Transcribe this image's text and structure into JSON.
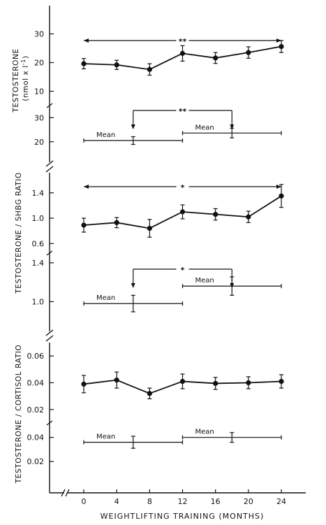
{
  "x_axis": {
    "label": "WEIGHTLIFTING TRAINING (MONTHS)",
    "ticks": [
      0,
      4,
      8,
      12,
      16,
      20,
      24
    ],
    "range": [
      -3.2,
      26.8
    ]
  },
  "y_labels": {
    "testosterone_main": "TESTOSTERONE",
    "testosterone_unit": "(nmol x l",
    "testosterone_unit_sup": "-1",
    "testosterone_unit_close": ")",
    "tshbg": "TESTOSTERONE / SHBG  RATIO",
    "tcort": "TESTOSTERONE / CORTISOL  RATIO"
  },
  "chart_data": [
    {
      "type": "line",
      "panel": "testosterone-time",
      "ylabel": "TESTOSTERONE (nmol x l-1)",
      "ylim": [
        5,
        35
      ],
      "yticks": [
        10,
        20,
        30
      ],
      "x": [
        0,
        4,
        8,
        12,
        16,
        20,
        24
      ],
      "y": [
        19.6,
        19.2,
        17.6,
        23.2,
        21.6,
        23.5,
        25.6
      ],
      "err": [
        1.8,
        1.6,
        2.0,
        2.7,
        1.9,
        2.0,
        2.1
      ],
      "significance": {
        "from": 0,
        "to": 24,
        "label": "**"
      }
    },
    {
      "type": "mean-bars",
      "panel": "testosterone-mean",
      "ylim": [
        15,
        35
      ],
      "yticks": [
        20,
        30
      ],
      "segments": [
        {
          "label": "Mean",
          "x_from": 0,
          "x_to": 12,
          "mean_x": 6,
          "y": 20.5,
          "err": 1.6
        },
        {
          "label": "Mean",
          "x_from": 12,
          "x_to": 24,
          "mean_x": 18,
          "y": 23.6,
          "err": 2.0
        }
      ],
      "significance": {
        "from": 6,
        "to": 18,
        "label": "**"
      }
    },
    {
      "type": "line",
      "panel": "tshbg-time",
      "ylabel": "TESTOSTERONE / SHBG RATIO",
      "ylim": [
        0.45,
        1.75
      ],
      "yticks": [
        0.6,
        1.0,
        1.4
      ],
      "ytick_labels": [
        "0.6",
        "1.0",
        "1.4"
      ],
      "x": [
        0,
        4,
        8,
        12,
        16,
        20,
        24
      ],
      "y": [
        0.89,
        0.93,
        0.84,
        1.1,
        1.06,
        1.02,
        1.35
      ],
      "err": [
        0.11,
        0.08,
        0.14,
        0.11,
        0.09,
        0.09,
        0.18
      ],
      "significance": {
        "from": 0,
        "to": 24,
        "label": "*"
      }
    },
    {
      "type": "mean-bars",
      "panel": "tshbg-mean",
      "ylim": [
        0.78,
        1.5
      ],
      "yticks": [
        1.0,
        1.4
      ],
      "ytick_labels": [
        "1.0",
        "1.4"
      ],
      "segments": [
        {
          "label": "Mean",
          "x_from": 0,
          "x_to": 12,
          "mean_x": 6,
          "y": 0.98,
          "err": 0.085
        },
        {
          "label": "Mean",
          "x_from": 12,
          "x_to": 24,
          "mean_x": 18,
          "y": 1.16,
          "err": 0.095
        }
      ],
      "significance": {
        "from": 6,
        "to": 18,
        "label": "*"
      }
    },
    {
      "type": "line",
      "panel": "tcort-time",
      "ylabel": "TESTOSTERONE / CORTISOL RATIO",
      "ylim": [
        0.01,
        0.07
      ],
      "yticks": [
        0.02,
        0.04,
        0.06
      ],
      "ytick_labels": [
        "0.02",
        "0.04",
        "0.06"
      ],
      "x": [
        0,
        4,
        8,
        12,
        16,
        20,
        24
      ],
      "y": [
        0.039,
        0.042,
        0.032,
        0.041,
        0.0395,
        0.04,
        0.041
      ],
      "err": [
        0.0065,
        0.006,
        0.004,
        0.0055,
        0.0045,
        0.0045,
        0.005
      ]
    },
    {
      "type": "mean-bars",
      "panel": "tcort-mean",
      "ylim": [
        0.012,
        0.052
      ],
      "yticks": [
        0.02,
        0.04
      ],
      "ytick_labels": [
        "0.02",
        "0.04"
      ],
      "segments": [
        {
          "label": "Mean",
          "x_from": 0,
          "x_to": 12,
          "mean_x": 6,
          "y": 0.036,
          "err": 0.005
        },
        {
          "label": "Mean",
          "x_from": 12,
          "x_to": 24,
          "mean_x": 18,
          "y": 0.04,
          "err": 0.004
        }
      ]
    }
  ]
}
